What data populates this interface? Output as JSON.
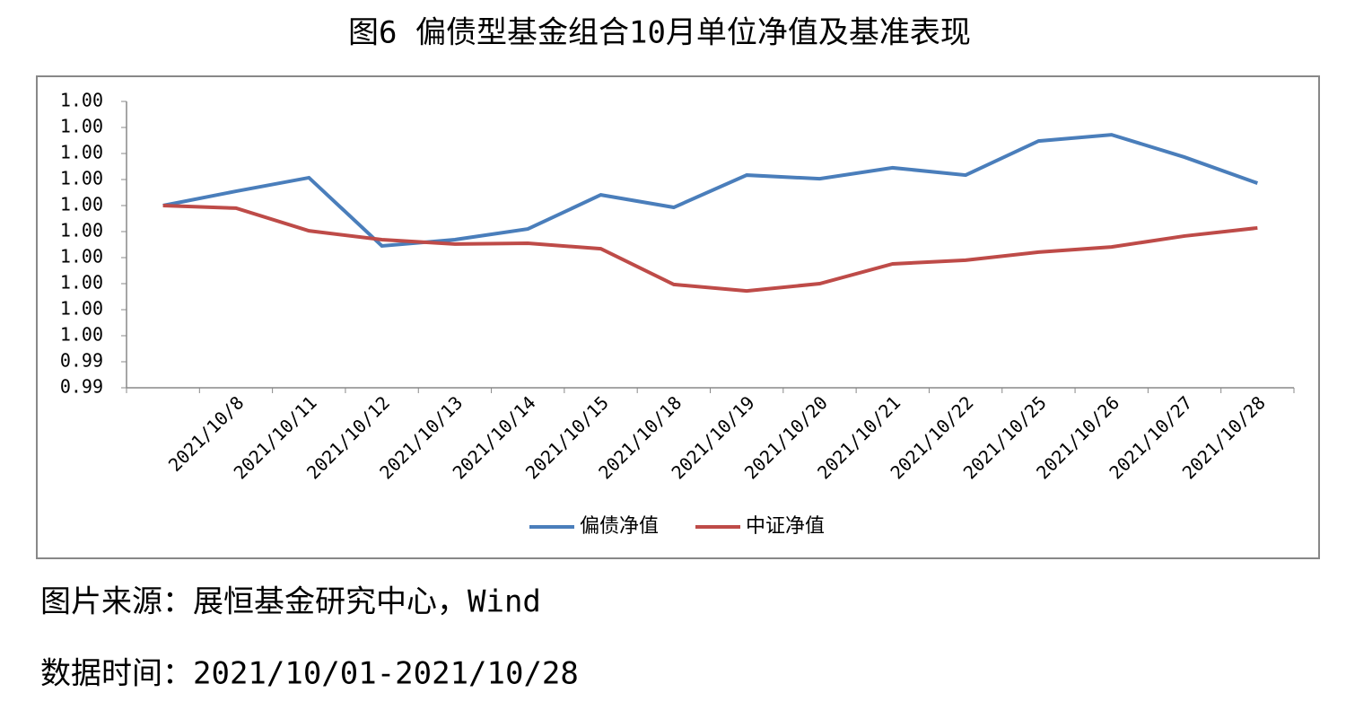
{
  "chart_data": {
    "type": "line",
    "title": "图6 偏债型基金组合10月单位净值及基准表现",
    "categories": [
      null,
      "2021/10/8",
      "2021/10/11",
      "2021/10/12",
      "2021/10/13",
      "2021/10/14",
      "2021/10/15",
      "2021/10/18",
      "2021/10/19",
      "2021/10/20",
      "2021/10/21",
      "2021/10/22",
      "2021/10/25",
      "2021/10/26",
      "2021/10/27",
      "2021/10/28"
    ],
    "series": [
      {
        "name": "偏债净值",
        "color": "#4a7ebb",
        "values": [
          1.0,
          1.00055,
          1.00107,
          0.99845,
          0.99869,
          0.9991,
          1.00041,
          0.99993,
          1.00117,
          1.00103,
          1.00145,
          1.00117,
          1.00248,
          1.00272,
          1.00186,
          1.00086
        ]
      },
      {
        "name": "中证净值",
        "color": "#be4b48",
        "values": [
          1.0,
          0.9999,
          0.99903,
          0.99869,
          0.99852,
          0.99855,
          0.99834,
          0.99697,
          0.99672,
          0.997,
          0.99776,
          0.9979,
          0.99821,
          0.99841,
          0.99883,
          0.99914
        ]
      }
    ],
    "ylim": [
      0.993,
      1.004
    ],
    "yticks": [
      {
        "value": 0.993,
        "label": "0.99"
      },
      {
        "value": 0.994,
        "label": "0.99"
      },
      {
        "value": 0.995,
        "label": "1.00"
      },
      {
        "value": 0.996,
        "label": "1.00"
      },
      {
        "value": 0.997,
        "label": "1.00"
      },
      {
        "value": 0.998,
        "label": "1.00"
      },
      {
        "value": 0.999,
        "label": "1.00"
      },
      {
        "value": 1.0,
        "label": "1.00"
      },
      {
        "value": 1.001,
        "label": "1.00"
      },
      {
        "value": 1.002,
        "label": "1.00"
      },
      {
        "value": 1.003,
        "label": "1.00"
      },
      {
        "value": 1.004,
        "label": "1.00"
      }
    ],
    "grid": false,
    "legend": "bottom"
  },
  "footer": [
    "图片来源：展恒基金研究中心，Wind",
    "数据时间：2021/10/01-2021/10/28"
  ]
}
